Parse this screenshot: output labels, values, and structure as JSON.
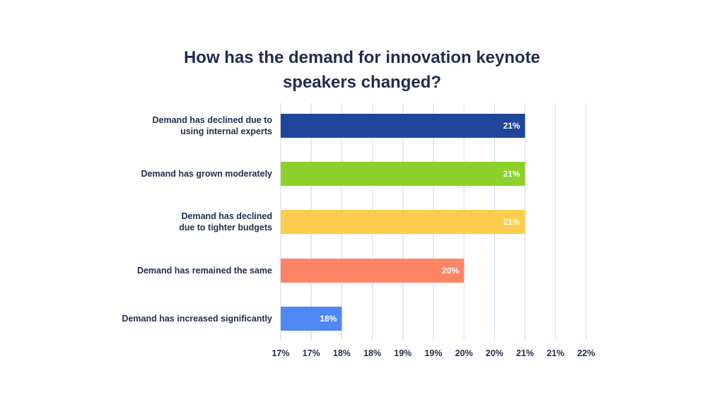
{
  "chart_data": {
    "type": "bar",
    "orientation": "horizontal",
    "title_lines": [
      "How has the demand for innovation keynote",
      "speakers changed?"
    ],
    "categories": [
      [
        "Demand has declined due to",
        "using internal experts"
      ],
      [
        "Demand has grown moderately"
      ],
      [
        "Demand has declined",
        "due to tighter budgets"
      ],
      [
        "Demand has remained the same"
      ],
      [
        "Demand has increased significantly"
      ]
    ],
    "values": [
      21,
      21,
      21,
      20,
      18
    ],
    "data_labels": [
      "21%",
      "21%",
      "21%",
      "20%",
      "18%"
    ],
    "colors": [
      "#1f4699",
      "#8cd02b",
      "#fecc4e",
      "#fd8566",
      "#4f87f5"
    ],
    "xlim": [
      17,
      22
    ],
    "x_ticks": [
      "17%",
      "17%",
      "18%",
      "18%",
      "19%",
      "19%",
      "20%",
      "20%",
      "21%",
      "21%",
      "22%"
    ],
    "grid": true,
    "legend": "none"
  }
}
